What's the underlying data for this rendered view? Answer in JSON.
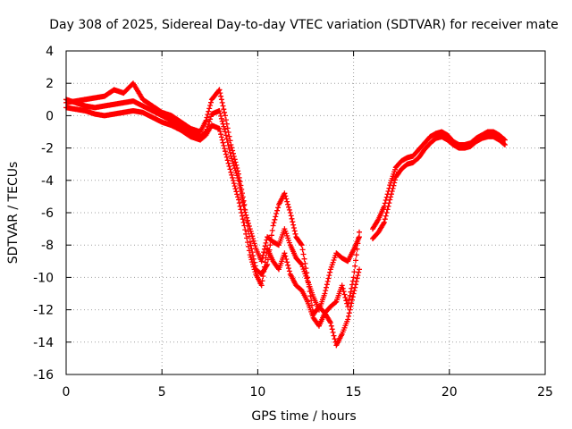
{
  "chart_data": {
    "type": "scatter",
    "title": "Day 308 of 2025, Sidereal Day-to-day VTEC variation (SDTVAR) for receiver mate",
    "xlabel": "GPS time / hours",
    "ylabel": "SDTVAR / TECUs",
    "xlim": [
      0,
      25
    ],
    "ylim": [
      -16,
      4
    ],
    "xticks": [
      0,
      5,
      10,
      15,
      20,
      25
    ],
    "yticks": [
      -16,
      -14,
      -12,
      -10,
      -8,
      -6,
      -4,
      -2,
      0,
      2,
      4
    ],
    "grid": true,
    "marker": "plus",
    "color": "#ff0000",
    "series": [
      {
        "x": [
          0.0,
          0.5,
          1.0,
          1.5,
          2.0,
          2.5,
          3.0,
          3.5,
          4.0,
          4.5,
          5.0,
          5.5,
          6.0,
          6.5,
          7.0,
          7.3,
          7.6,
          8.0,
          8.3,
          8.6,
          9.0,
          9.3,
          9.6,
          9.9,
          10.2,
          10.5,
          10.8,
          11.1,
          11.4,
          11.7,
          12.0,
          12.3,
          12.6,
          12.9,
          13.2,
          13.5,
          13.8,
          14.1,
          14.4,
          14.7,
          15.0,
          15.3
        ],
        "y": [
          1.0,
          0.8,
          0.6,
          0.5,
          0.6,
          0.7,
          0.8,
          0.9,
          0.6,
          0.3,
          0.0,
          -0.3,
          -0.6,
          -1.1,
          -1.3,
          -1.0,
          0.1,
          0.3,
          -1.0,
          -2.5,
          -4.0,
          -5.8,
          -7.0,
          -8.2,
          -9.0,
          -7.5,
          -7.8,
          -8.0,
          -7.0,
          -8.0,
          -8.8,
          -9.2,
          -10.2,
          -11.2,
          -12.0,
          -11.0,
          -9.5,
          -8.5,
          -8.8,
          -9.0,
          -8.3,
          -7.5
        ]
      },
      {
        "x": [
          0.0,
          0.5,
          1.0,
          1.5,
          2.0,
          2.5,
          3.0,
          3.5,
          4.0,
          4.5,
          5.0,
          5.5,
          6.0,
          6.5,
          7.0,
          7.3,
          7.6,
          8.0,
          8.3,
          8.6,
          9.0,
          9.3,
          9.6,
          9.9,
          10.2,
          10.5,
          10.8,
          11.1,
          11.4,
          11.7,
          12.0,
          12.3,
          12.6,
          12.9,
          13.2,
          13.5,
          13.8,
          14.1,
          14.4,
          14.7,
          15.0,
          15.3
        ],
        "y": [
          0.8,
          0.9,
          1.0,
          1.1,
          1.2,
          1.6,
          1.4,
          2.0,
          1.0,
          0.6,
          0.2,
          0.0,
          -0.4,
          -0.8,
          -1.0,
          -0.3,
          1.0,
          1.6,
          0.0,
          -1.8,
          -3.6,
          -5.5,
          -7.8,
          -9.5,
          -9.8,
          -9.2,
          -6.8,
          -5.5,
          -4.8,
          -6.0,
          -7.5,
          -8.0,
          -10.0,
          -12.3,
          -11.8,
          -12.2,
          -11.8,
          -11.5,
          -10.5,
          -11.8,
          -10.0,
          -7.2
        ]
      },
      {
        "x": [
          0.0,
          0.5,
          1.0,
          1.5,
          2.0,
          2.5,
          3.0,
          3.5,
          4.0,
          4.5,
          5.0,
          5.5,
          6.0,
          6.5,
          7.0,
          7.3,
          7.6,
          8.0,
          8.3,
          8.6,
          9.0,
          9.3,
          9.6,
          9.9,
          10.2,
          10.5,
          10.8,
          11.1,
          11.4,
          11.7,
          12.0,
          12.3,
          12.6,
          12.9,
          13.2,
          13.5,
          13.8,
          14.1,
          14.4,
          14.7,
          15.0,
          15.3
        ],
        "y": [
          0.5,
          0.4,
          0.3,
          0.1,
          0.0,
          0.1,
          0.2,
          0.3,
          0.2,
          -0.1,
          -0.4,
          -0.6,
          -0.9,
          -1.3,
          -1.5,
          -1.2,
          -0.6,
          -0.8,
          -2.2,
          -3.5,
          -5.2,
          -6.8,
          -8.6,
          -9.8,
          -10.5,
          -8.2,
          -9.0,
          -9.5,
          -8.5,
          -9.8,
          -10.5,
          -10.8,
          -11.5,
          -12.5,
          -13.0,
          -12.2,
          -12.8,
          -14.2,
          -13.5,
          -12.6,
          -11.0,
          -9.5
        ]
      },
      {
        "x": [
          16.0,
          16.3,
          16.6,
          16.9,
          17.2,
          17.5,
          17.8,
          18.1,
          18.4,
          18.7,
          19.0,
          19.3,
          19.6,
          19.9,
          20.2,
          20.5,
          20.8,
          21.1,
          21.4,
          21.7,
          22.0,
          22.3,
          22.6,
          22.9
        ],
        "y": [
          -7.0,
          -6.4,
          -5.6,
          -4.3,
          -3.2,
          -2.8,
          -2.6,
          -2.5,
          -2.1,
          -1.7,
          -1.3,
          -1.1,
          -1.0,
          -1.2,
          -1.6,
          -1.8,
          -1.8,
          -1.7,
          -1.4,
          -1.2,
          -1.0,
          -1.0,
          -1.2,
          -1.5
        ]
      },
      {
        "x": [
          16.0,
          16.3,
          16.6,
          16.9,
          17.2,
          17.5,
          17.8,
          18.1,
          18.4,
          18.7,
          19.0,
          19.3,
          19.6,
          19.9,
          20.2,
          20.5,
          20.8,
          21.1,
          21.4,
          21.7,
          22.0,
          22.3,
          22.6,
          22.9
        ],
        "y": [
          -7.6,
          -7.2,
          -6.6,
          -5.2,
          -3.8,
          -3.3,
          -3.0,
          -2.9,
          -2.6,
          -2.1,
          -1.7,
          -1.4,
          -1.3,
          -1.5,
          -1.8,
          -2.0,
          -2.0,
          -1.9,
          -1.6,
          -1.4,
          -1.3,
          -1.3,
          -1.5,
          -1.8
        ]
      }
    ]
  }
}
